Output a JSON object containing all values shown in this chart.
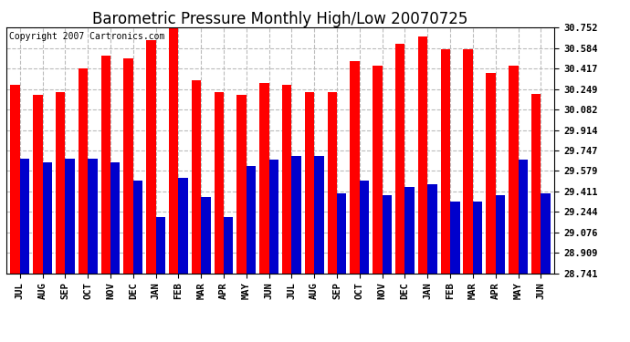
{
  "title": "Barometric Pressure Monthly High/Low 20070725",
  "copyright": "Copyright 2007 Cartronics.com",
  "months": [
    "JUL",
    "AUG",
    "SEP",
    "OCT",
    "NOV",
    "DEC",
    "JAN",
    "FEB",
    "MAR",
    "APR",
    "MAY",
    "JUN",
    "JUL",
    "AUG",
    "SEP",
    "OCT",
    "NOV",
    "DEC",
    "JAN",
    "FEB",
    "MAR",
    "APR",
    "MAY",
    "JUN"
  ],
  "highs": [
    30.28,
    30.2,
    30.22,
    30.42,
    30.52,
    30.5,
    30.65,
    30.75,
    30.32,
    30.22,
    30.2,
    30.3,
    30.28,
    30.22,
    30.22,
    30.48,
    30.44,
    30.62,
    30.68,
    30.57,
    30.57,
    30.38,
    30.44,
    30.21
  ],
  "lows": [
    29.68,
    29.65,
    29.68,
    29.68,
    29.65,
    29.5,
    29.2,
    29.52,
    29.37,
    29.2,
    29.62,
    29.67,
    29.7,
    29.7,
    29.4,
    29.5,
    29.38,
    29.45,
    29.47,
    29.33,
    29.33,
    29.38,
    29.67,
    29.4
  ],
  "yticks": [
    28.741,
    28.909,
    29.076,
    29.244,
    29.411,
    29.579,
    29.747,
    29.914,
    30.082,
    30.249,
    30.417,
    30.584,
    30.752
  ],
  "ymin": 28.741,
  "ymax": 30.752,
  "bar_width": 0.42,
  "high_color": "#ff0000",
  "low_color": "#0000cc",
  "bg_color": "#ffffff",
  "plot_bg_color": "#ffffff",
  "grid_color": "#bbbbbb",
  "title_fontsize": 12,
  "tick_fontsize": 7.5,
  "copyright_fontsize": 7
}
